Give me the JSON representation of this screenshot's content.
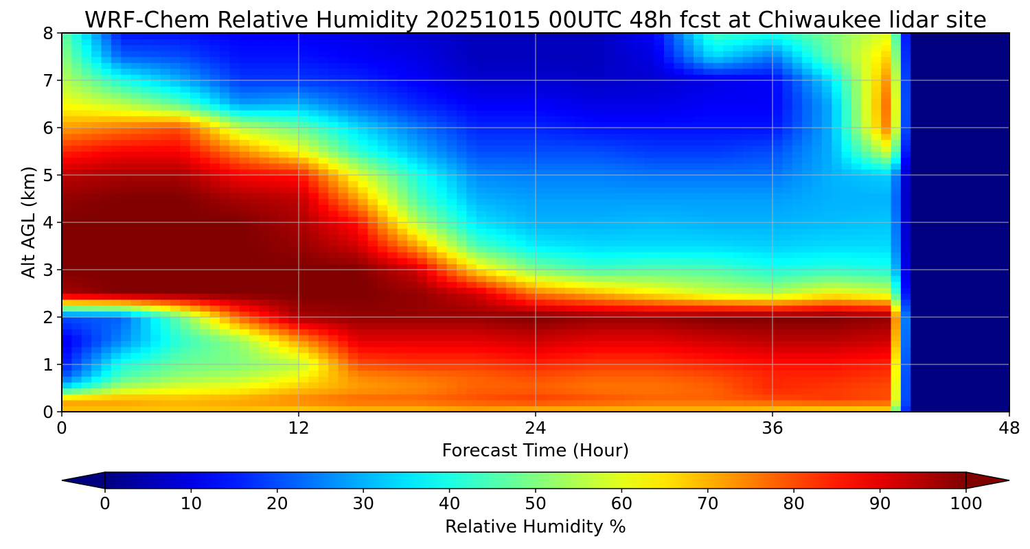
{
  "chart_data": {
    "type": "heatmap",
    "title": "WRF-Chem Relative Humidity 20251015 00UTC 48h fcst at Chiwaukee lidar site",
    "xlabel": "Forecast Time (Hour)",
    "ylabel": "Alt AGL (km)",
    "xlim": [
      0,
      48
    ],
    "ylim": [
      0,
      8
    ],
    "x_ticks": [
      0,
      12,
      24,
      36,
      48
    ],
    "y_ticks": [
      0,
      1,
      2,
      3,
      4,
      5,
      6,
      7,
      8
    ],
    "grid": true,
    "colormap": "jet",
    "colorbar": {
      "label": "Relative Humidity %",
      "range": [
        0,
        100
      ],
      "ticks": [
        0,
        10,
        20,
        30,
        40,
        50,
        60,
        70,
        80,
        90,
        100
      ],
      "extend": "both",
      "orientation": "horizontal"
    },
    "x": [
      0,
      3,
      6,
      9,
      12,
      15,
      18,
      21,
      24,
      27,
      30,
      33,
      36,
      39,
      42,
      43,
      48
    ],
    "y": [
      0,
      0.25,
      0.5,
      0.75,
      1,
      1.5,
      2,
      2.5,
      3,
      3.5,
      4,
      4.5,
      5,
      5.5,
      6,
      6.5,
      7,
      7.5,
      8
    ],
    "z": [
      [
        68,
        68,
        68,
        68,
        66,
        68,
        68,
        70,
        68,
        68,
        68,
        68,
        66,
        64,
        64,
        0,
        0
      ],
      [
        72,
        72,
        70,
        72,
        75,
        78,
        78,
        80,
        82,
        80,
        78,
        78,
        80,
        82,
        80,
        0,
        0
      ],
      [
        35,
        55,
        60,
        62,
        68,
        72,
        74,
        78,
        78,
        76,
        76,
        78,
        84,
        82,
        80,
        0,
        0
      ],
      [
        20,
        45,
        52,
        55,
        62,
        74,
        76,
        78,
        80,
        78,
        78,
        80,
        84,
        84,
        82,
        0,
        0
      ],
      [
        14,
        40,
        48,
        50,
        55,
        80,
        82,
        82,
        84,
        82,
        82,
        84,
        86,
        86,
        84,
        0,
        0
      ],
      [
        10,
        26,
        42,
        52,
        72,
        90,
        90,
        90,
        92,
        90,
        90,
        92,
        94,
        94,
        92,
        0,
        0
      ],
      [
        20,
        22,
        48,
        78,
        96,
        98,
        98,
        98,
        100,
        98,
        98,
        100,
        100,
        100,
        98,
        0,
        0
      ],
      [
        96,
        100,
        100,
        100,
        100,
        100,
        98,
        92,
        76,
        70,
        64,
        58,
        55,
        62,
        58,
        0,
        0
      ],
      [
        100,
        100,
        100,
        100,
        100,
        100,
        92,
        66,
        50,
        44,
        46,
        45,
        40,
        42,
        40,
        0,
        0
      ],
      [
        100,
        100,
        100,
        100,
        98,
        92,
        72,
        45,
        36,
        34,
        34,
        34,
        33,
        34,
        34,
        0,
        0
      ],
      [
        100,
        100,
        100,
        100,
        96,
        86,
        55,
        35,
        30,
        30,
        31,
        30,
        30,
        31,
        32,
        0,
        0
      ],
      [
        98,
        100,
        100,
        96,
        94,
        72,
        45,
        30,
        28,
        28,
        28,
        28,
        28,
        30,
        30,
        0,
        0
      ],
      [
        94,
        96,
        96,
        88,
        86,
        60,
        40,
        26,
        25,
        25,
        24,
        24,
        24,
        30,
        33,
        0,
        0
      ],
      [
        84,
        88,
        88,
        74,
        62,
        42,
        30,
        20,
        20,
        20,
        18,
        18,
        20,
        30,
        60,
        0,
        0
      ],
      [
        72,
        76,
        80,
        56,
        48,
        34,
        24,
        16,
        16,
        14,
        14,
        14,
        14,
        30,
        78,
        0,
        0
      ],
      [
        62,
        56,
        46,
        28,
        30,
        22,
        16,
        12,
        12,
        10,
        10,
        12,
        12,
        30,
        80,
        0,
        0
      ],
      [
        56,
        40,
        30,
        18,
        18,
        16,
        12,
        8,
        8,
        7,
        8,
        10,
        12,
        35,
        76,
        0,
        0
      ],
      [
        52,
        22,
        20,
        14,
        14,
        12,
        10,
        6,
        6,
        6,
        10,
        34,
        24,
        48,
        68,
        0,
        0
      ],
      [
        48,
        14,
        14,
        12,
        12,
        10,
        8,
        6,
        6,
        6,
        12,
        44,
        40,
        50,
        60,
        0,
        0
      ]
    ]
  }
}
